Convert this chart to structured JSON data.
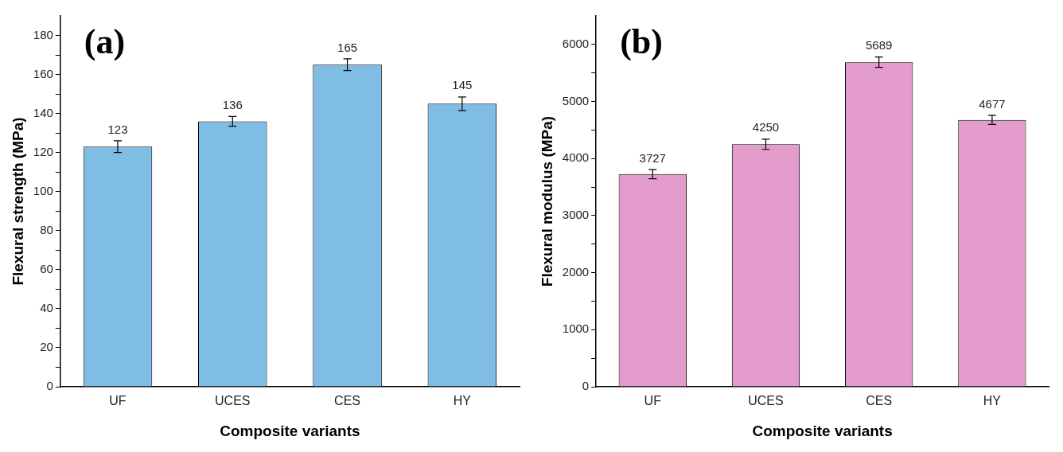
{
  "chart_data": [
    {
      "type": "bar",
      "title": "(a)",
      "xlabel": "Composite variants",
      "ylabel": "Flexural strength (MPa)",
      "categories": [
        "UF",
        "UCES",
        "CES",
        "HY"
      ],
      "values": [
        123,
        136,
        165,
        145
      ],
      "errors": [
        3,
        2.5,
        3,
        3.5
      ],
      "color": "#7fbde4",
      "data_labels": true,
      "ylim": [
        0,
        190
      ],
      "yticks": [
        0,
        {
          "value": 10,
          "label": null
        },
        20,
        {
          "value": 30,
          "label": null
        },
        40,
        {
          "value": 50,
          "label": null
        },
        60,
        {
          "value": 70,
          "label": null
        },
        80,
        {
          "value": 90,
          "label": null
        },
        100,
        {
          "value": 110,
          "label": null
        },
        120,
        {
          "value": 130,
          "label": null
        },
        140,
        {
          "value": 150,
          "label": null
        },
        160,
        {
          "value": 170,
          "label": null
        },
        180
      ]
    },
    {
      "type": "bar",
      "title": "(b)",
      "xlabel": "Composite variants",
      "ylabel": "Flexural modulus (MPa)",
      "categories": [
        "UF",
        "UCES",
        "CES",
        "HY"
      ],
      "values": [
        3727,
        4250,
        5689,
        4677
      ],
      "errors": [
        80,
        90,
        90,
        80
      ],
      "color": "#e39ccb",
      "data_labels": true,
      "ylim": [
        0,
        6500
      ],
      "yticks": [
        0,
        {
          "value": 500,
          "label": null
        },
        1000,
        {
          "value": 1500,
          "label": null
        },
        2000,
        {
          "value": 2500,
          "label": null
        },
        3000,
        {
          "value": 3500,
          "label": null
        },
        4000,
        {
          "value": 4500,
          "label": null
        },
        5000,
        {
          "value": 5500,
          "label": null
        },
        6000
      ]
    }
  ]
}
